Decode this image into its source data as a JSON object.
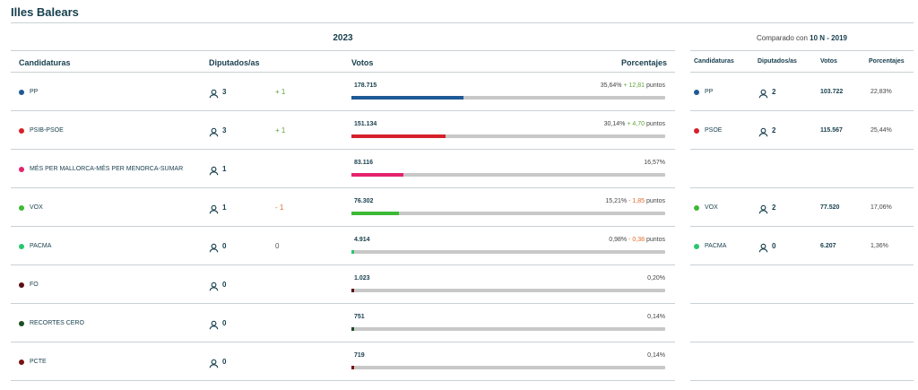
{
  "title": "Illes Balears",
  "main": {
    "year": "2023",
    "headers": {
      "party": "Candidaturas",
      "seats": "Diputados/as",
      "votes": "Votos",
      "pct": "Porcentajes"
    },
    "rows": [
      {
        "party": "PP",
        "color": "#1d5a96",
        "seats": "3",
        "delta": "+ 1",
        "delta_type": "up",
        "votes": "178.715",
        "pct": "35,64%",
        "pct_change": "+ 12,81",
        "pct_change_type": "up",
        "pct_unit": "puntos",
        "share": 0.3564
      },
      {
        "party": "PSIB-PSOE",
        "color": "#d52029",
        "seats": "3",
        "delta": "+ 1",
        "delta_type": "up",
        "votes": "151.134",
        "pct": "30,14%",
        "pct_change": "+ 4,70",
        "pct_change_type": "up",
        "pct_unit": "puntos",
        "share": 0.3014
      },
      {
        "party": "MÉS PER MALLORCA-MÉS PER MENORCA-SUMAR",
        "color": "#e5236d",
        "seats": "1",
        "delta": "",
        "delta_type": "",
        "votes": "83.116",
        "pct": "16,57%",
        "pct_change": "",
        "pct_change_type": "",
        "pct_unit": "",
        "share": 0.1657
      },
      {
        "party": "VOX",
        "color": "#3cba36",
        "seats": "1",
        "delta": "- 1",
        "delta_type": "down",
        "votes": "76.302",
        "pct": "15,21%",
        "pct_change": "- 1,85",
        "pct_change_type": "down",
        "pct_unit": "puntos",
        "share": 0.1521
      },
      {
        "party": "PACMA",
        "color": "#28c76f",
        "seats": "0",
        "delta": "0",
        "delta_type": "zero",
        "votes": "4.914",
        "pct": "0,98%",
        "pct_change": "- 0,38",
        "pct_change_type": "down",
        "pct_unit": "puntos",
        "share": 0.0098
      },
      {
        "party": "FO",
        "color": "#5a1014",
        "seats": "0",
        "delta": "",
        "delta_type": "",
        "votes": "1.023",
        "pct": "0,20%",
        "pct_change": "",
        "pct_change_type": "",
        "pct_unit": "",
        "share": 0.002
      },
      {
        "party": "RECORTES CERO",
        "color": "#1e4d22",
        "seats": "0",
        "delta": "",
        "delta_type": "",
        "votes": "751",
        "pct": "0,14%",
        "pct_change": "",
        "pct_change_type": "",
        "pct_unit": "",
        "share": 0.0014
      },
      {
        "party": "PCTE",
        "color": "#7a1212",
        "seats": "0",
        "delta": "",
        "delta_type": "",
        "votes": "719",
        "pct": "0,14%",
        "pct_change": "",
        "pct_change_type": "",
        "pct_unit": "",
        "share": 0.0014
      }
    ]
  },
  "side": {
    "compared_prefix": "Comparado con",
    "compared_with": "10 N - 2019",
    "headers": {
      "party": "Candidaturas",
      "seats": "Diputados/as",
      "votes": "Votos",
      "pct": "Porcentajes"
    },
    "rows": [
      {
        "party": "PP",
        "color": "#1d5a96",
        "seats": "2",
        "votes": "103.722",
        "pct": "22,83%"
      },
      {
        "party": "PSOE",
        "color": "#d52029",
        "seats": "2",
        "votes": "115.567",
        "pct": "25,44%"
      },
      null,
      {
        "party": "VOX",
        "color": "#3cba36",
        "seats": "2",
        "votes": "77.520",
        "pct": "17,06%"
      },
      {
        "party": "PACMA",
        "color": "#28c76f",
        "seats": "0",
        "votes": "6.207",
        "pct": "1,36%"
      },
      null,
      null,
      null
    ]
  }
}
